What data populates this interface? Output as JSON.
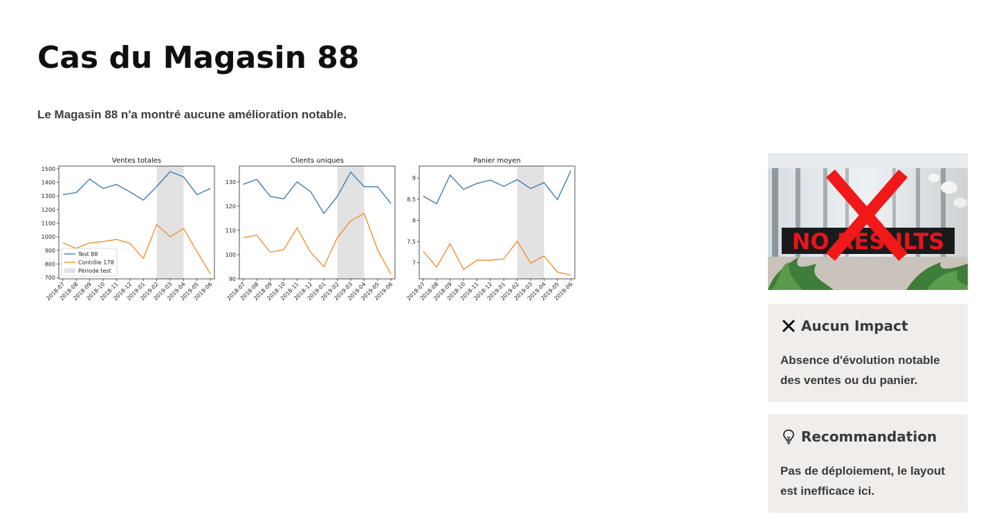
{
  "page": {
    "title": "Cas du Magasin 88",
    "subtitle": "Le Magasin 88 n'a montré aucune amélioration notable."
  },
  "image": {
    "sign_text": "NO RESULTS",
    "icon": "red-cross-icon"
  },
  "cards": [
    {
      "icon": "x-mark-icon",
      "title": "Aucun Impact",
      "body": "Absence d'évolution notable des ventes ou du panier."
    },
    {
      "icon": "lightbulb-icon",
      "title": "Recommandation",
      "body": "Pas de déploiement, le layout est inefficace ici."
    }
  ],
  "colors": {
    "test": "#3b7cb4",
    "control": "#f0902e",
    "test_period": "#e2e2e2"
  },
  "chart_data": [
    {
      "type": "line",
      "title": "Ventes totales",
      "categories": [
        "2018-07",
        "2018-08",
        "2018-09",
        "2018-10",
        "2018-11",
        "2018-12",
        "2019-01",
        "2019-02",
        "2019-03",
        "2019-04",
        "2019-05",
        "2019-06"
      ],
      "series": [
        {
          "name": "Test 88",
          "values": [
            1310,
            1325,
            1425,
            1355,
            1385,
            1330,
            1270,
            1370,
            1480,
            1440,
            1310,
            1355
          ]
        },
        {
          "name": "Contrôle 178",
          "values": [
            955,
            915,
            955,
            965,
            980,
            950,
            840,
            1090,
            1000,
            1060,
            890,
            725
          ]
        }
      ],
      "highlight": {
        "name": "Période test",
        "from": "2019-02",
        "to": "2019-04"
      },
      "ylim": [
        690,
        1520
      ],
      "yticks": [
        700,
        800,
        900,
        1000,
        1100,
        1200,
        1300,
        1400,
        1500
      ],
      "legend": "lower-left"
    },
    {
      "type": "line",
      "title": "Clients uniques",
      "categories": [
        "2018-07",
        "2018-08",
        "2018-09",
        "2018-10",
        "2018-11",
        "2018-12",
        "2019-01",
        "2019-02",
        "2019-03",
        "2019-04",
        "2019-05",
        "2019-06"
      ],
      "series": [
        {
          "name": "Test 88",
          "values": [
            129,
            131,
            124,
            123,
            130,
            126,
            117,
            124,
            134,
            128,
            128,
            121
          ]
        },
        {
          "name": "Contrôle 178",
          "values": [
            107,
            108,
            101,
            102,
            111,
            101,
            95,
            107,
            114,
            117,
            102,
            92
          ]
        }
      ],
      "highlight": {
        "name": "Période test",
        "from": "2019-02",
        "to": "2019-04"
      },
      "ylim": [
        90,
        136.5
      ],
      "yticks": [
        90,
        100,
        110,
        120,
        130
      ]
    },
    {
      "type": "line",
      "title": "Panier moyen",
      "categories": [
        "2018-07",
        "2018-08",
        "2018-09",
        "2018-10",
        "2018-11",
        "2018-12",
        "2019-01",
        "2019-02",
        "2019-03",
        "2019-04",
        "2019-05",
        "2019-06"
      ],
      "series": [
        {
          "name": "Test 88",
          "values": [
            8.57,
            8.39,
            9.07,
            8.73,
            8.87,
            8.95,
            8.8,
            8.96,
            8.75,
            8.89,
            8.49,
            9.17
          ]
        },
        {
          "name": "Contrôle 178",
          "values": [
            7.27,
            6.9,
            7.45,
            6.84,
            7.06,
            7.06,
            7.09,
            7.51,
            6.99,
            7.16,
            6.78,
            6.71
          ]
        }
      ],
      "highlight": {
        "name": "Période test",
        "from": "2019-02",
        "to": "2019-04"
      },
      "ylim": [
        6.62,
        9.28
      ],
      "yticks": [
        7.0,
        7.5,
        8.0,
        8.5,
        9.0
      ]
    }
  ]
}
